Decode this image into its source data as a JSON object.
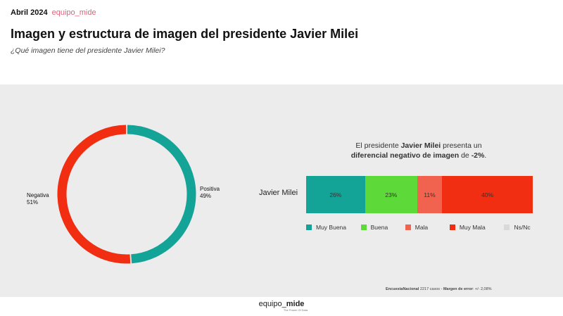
{
  "header": {
    "date": "Abril 2024",
    "brand": "equipo_mide",
    "title": "Imagen y estructura de imagen del presidente Javier Milei",
    "subtitle": "¿Qué imagen tiene del presidente Javier Milei?"
  },
  "chart_data": [
    {
      "type": "pie",
      "donut": true,
      "slices": [
        {
          "label": "Positiva",
          "value": 49,
          "value_label": "49%",
          "color": "#14a497"
        },
        {
          "label": "Negativa",
          "value": 51,
          "value_label": "51%",
          "color": "#f12d12"
        }
      ]
    },
    {
      "type": "bar",
      "orientation": "horizontal",
      "stacked": true,
      "categories": [
        "Javier Milei"
      ],
      "headline": {
        "pre": "El presidente ",
        "name": "Javier Milei",
        "mid": " presenta un ",
        "bold": "diferencial negativo de imagen",
        "post": " de ",
        "value": "-2%",
        "end": "."
      },
      "series": [
        {
          "name": "Muy Buena",
          "values": [
            26
          ],
          "label": "26%",
          "color": "#14a497"
        },
        {
          "name": "Buena",
          "values": [
            23
          ],
          "label": "23%",
          "color": "#5ed93a"
        },
        {
          "name": "Mala",
          "values": [
            11
          ],
          "label": "11%",
          "color": "#f2634f"
        },
        {
          "name": "Muy Mala",
          "values": [
            40
          ],
          "label": "40%",
          "color": "#f12d12"
        },
        {
          "name": "Ns/Nc",
          "values": [
            0
          ],
          "label": "",
          "color": "#d9d9d9"
        }
      ],
      "legend": "bottom"
    }
  ],
  "footer": {
    "note_bold1": "EncuestaNacional",
    "note_mid": " 2217 casos - ",
    "note_bold2": "Margen de error",
    "note_end": ": +/- 2,08%",
    "logo_a": "equipo_",
    "logo_b": "mide",
    "logo_tag": "The Power Of Data"
  }
}
